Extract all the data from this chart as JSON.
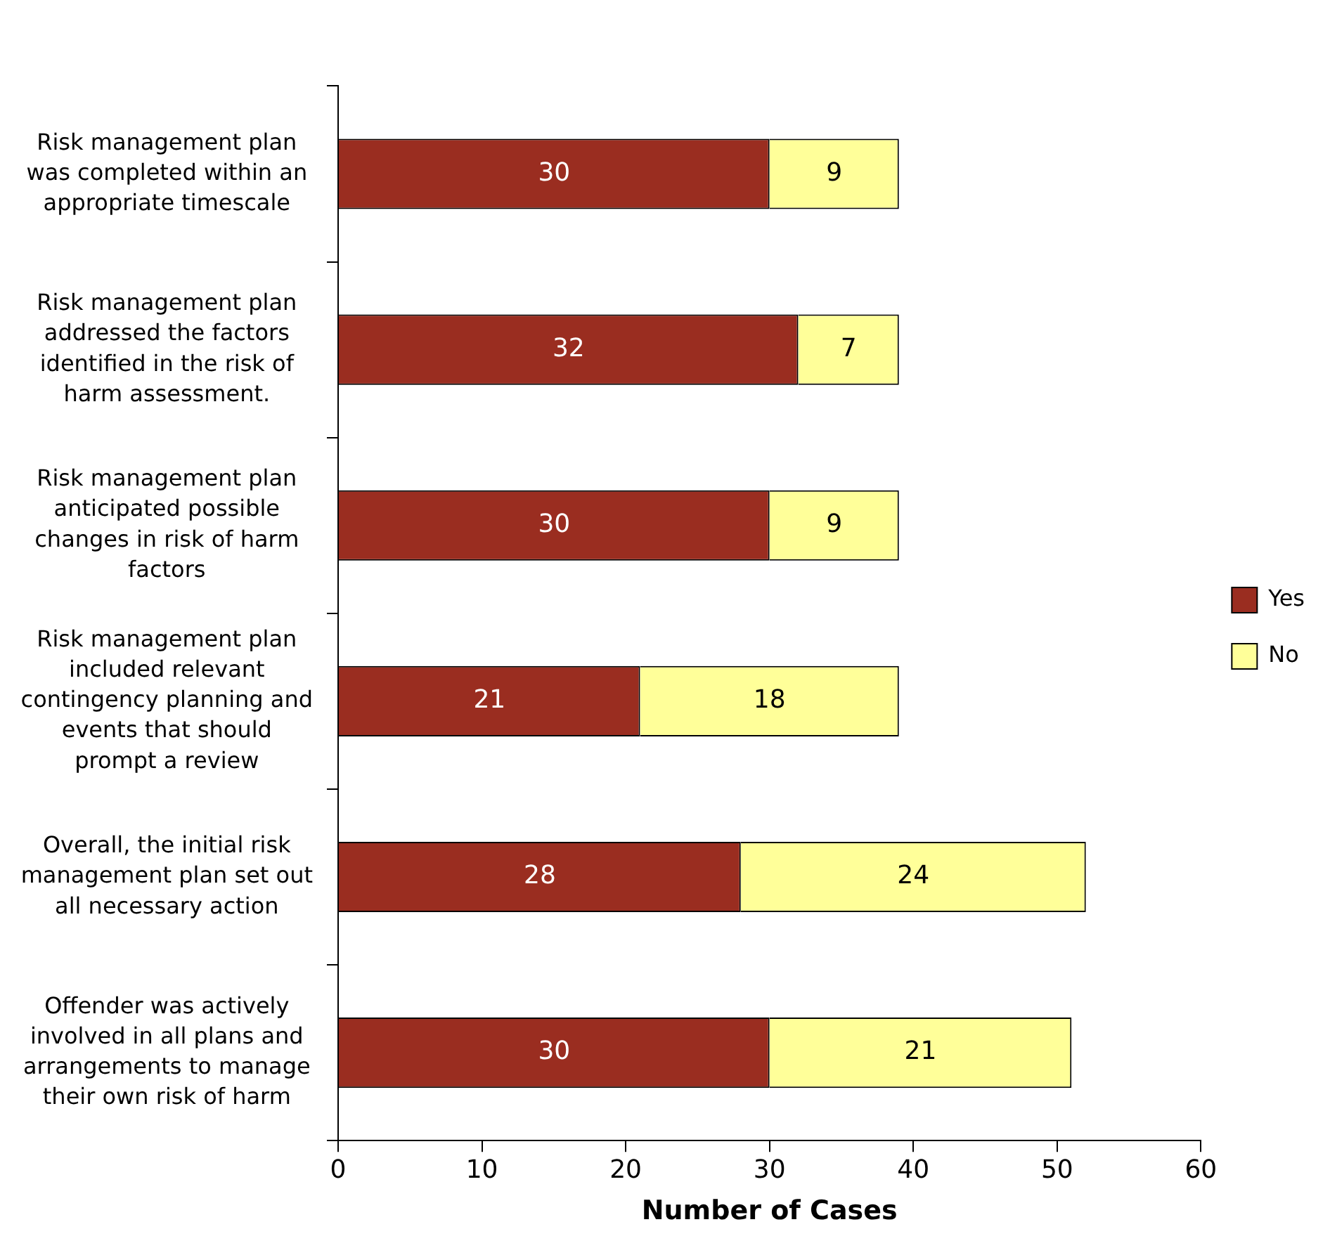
{
  "chart_data": {
    "type": "bar",
    "orientation": "horizontal",
    "stacked": true,
    "xlabel": "Number of Cases",
    "categories": [
      "Risk management plan was completed within an appropriate timescale",
      "Risk management plan addressed the factors identified in the risk of harm assessment.",
      "Risk management plan anticipated possible changes in risk of harm factors",
      "Risk management plan included relevant contingency planning and events that should prompt a review",
      "Overall, the initial risk management plan set out all necessary action",
      "Offender was actively involved in all plans and arrangements to manage their own risk of harm"
    ],
    "series": [
      {
        "name": "Yes",
        "color": "#9a2d20",
        "values": [
          30,
          32,
          30,
          21,
          28,
          30
        ]
      },
      {
        "name": "No",
        "color": "#ffff99",
        "values": [
          9,
          7,
          9,
          18,
          24,
          21
        ]
      }
    ],
    "xlim": [
      0,
      60
    ],
    "xticks": [
      0,
      10,
      20,
      30,
      40,
      50,
      60
    ],
    "grid": false,
    "legend": "right",
    "data_labels": true
  }
}
